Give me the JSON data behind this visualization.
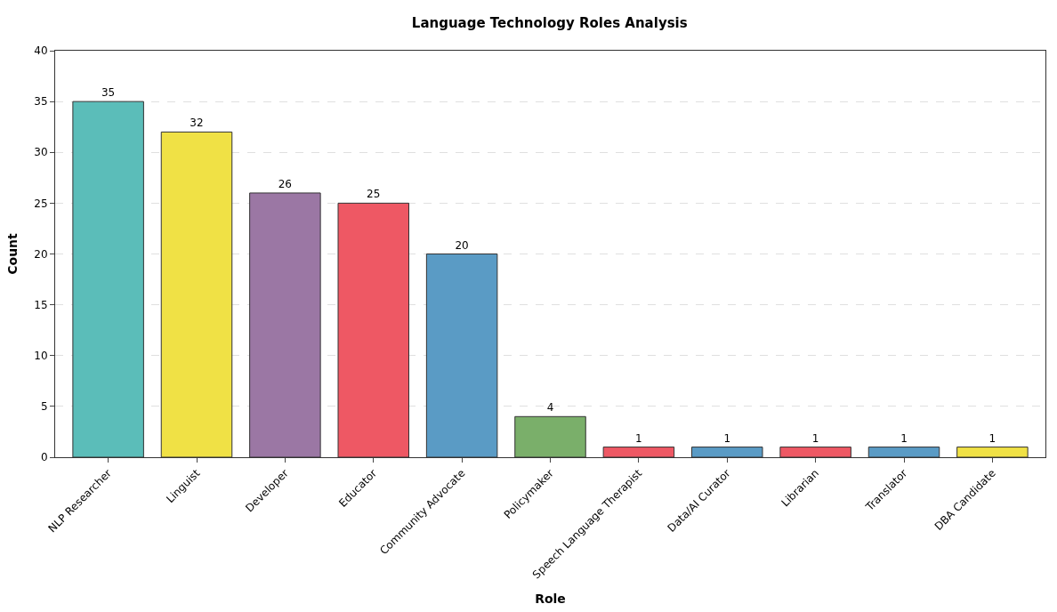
{
  "chart_data": {
    "type": "bar",
    "title": "Language Technology Roles Analysis",
    "xlabel": "Role",
    "ylabel": "Count",
    "categories": [
      "NLP Researcher",
      "Linguist",
      "Developer",
      "Educator",
      "Community Advocate",
      "Policymaker",
      "Speech Language Therapist",
      "Data/AI Curator",
      "Librarian",
      "Translator",
      "DBA Candidate"
    ],
    "values": [
      35,
      32,
      26,
      25,
      20,
      4,
      1,
      1,
      1,
      1,
      1
    ],
    "colors": [
      "#5bbdb9",
      "#f0e145",
      "#9b77a4",
      "#ee5864",
      "#5a9bc5",
      "#7aaf6a",
      "#ee5864",
      "#5a9bc5",
      "#ee5864",
      "#5a9bc5",
      "#f0e145"
    ],
    "ylim": [
      0,
      40
    ],
    "yticks": [
      0,
      5,
      10,
      15,
      20,
      25,
      30,
      35,
      40
    ],
    "grid": "y",
    "data_labels": true,
    "legend": false
  }
}
